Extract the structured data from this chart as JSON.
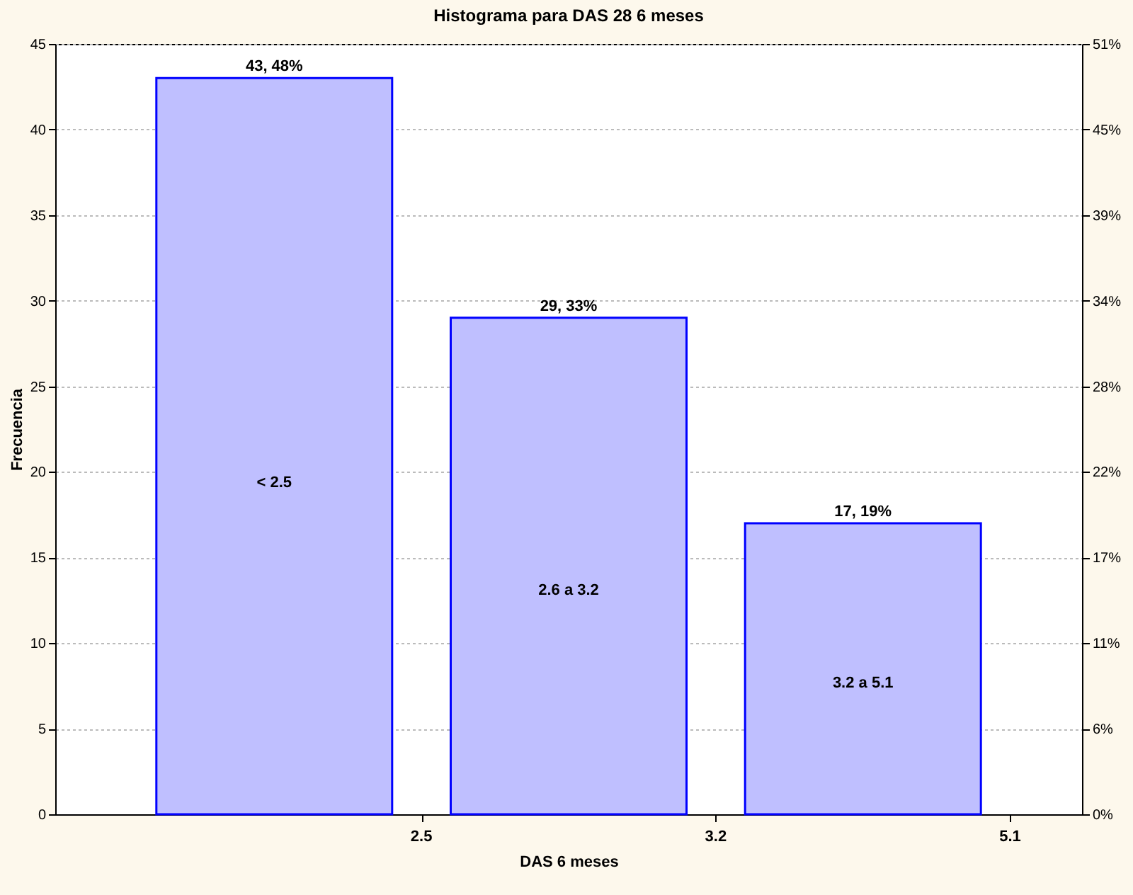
{
  "chart_data": {
    "type": "bar",
    "title": "Histograma para DAS 28 6 meses",
    "xlabel": "DAS 6 meses",
    "ylabel": "Frecuencia",
    "categories": [
      null,
      null,
      null
    ],
    "values": [
      43,
      29,
      17
    ],
    "value_labels": [
      "43, 48%",
      "29, 33%",
      "17, 19%"
    ],
    "color": "#bfbfff",
    "ylim": [
      0,
      45
    ],
    "yticks": [
      0,
      5,
      10,
      15,
      20,
      25,
      30,
      35,
      40,
      45
    ],
    "y2lim": [
      0,
      50.56
    ],
    "y2ticks": [
      {
        "value": 0,
        "label": "0%"
      },
      {
        "value": 5.62,
        "label": "6%"
      },
      {
        "value": 11.24,
        "label": "11%"
      },
      {
        "value": 16.85,
        "label": "17%"
      },
      {
        "value": 22.47,
        "label": "22%"
      },
      {
        "value": 28.09,
        "label": "28%"
      },
      {
        "value": 33.71,
        "label": "34%"
      },
      {
        "value": 39.33,
        "label": "39%"
      },
      {
        "value": 44.94,
        "label": "45%"
      },
      {
        "value": 50.56,
        "label": "51%"
      }
    ],
    "annotations": [
      "< 2.5",
      "2.6 a 3.2",
      "3.2 a 5.1",
      "2.5",
      "3.2",
      "5.1"
    ],
    "grid": "y"
  }
}
